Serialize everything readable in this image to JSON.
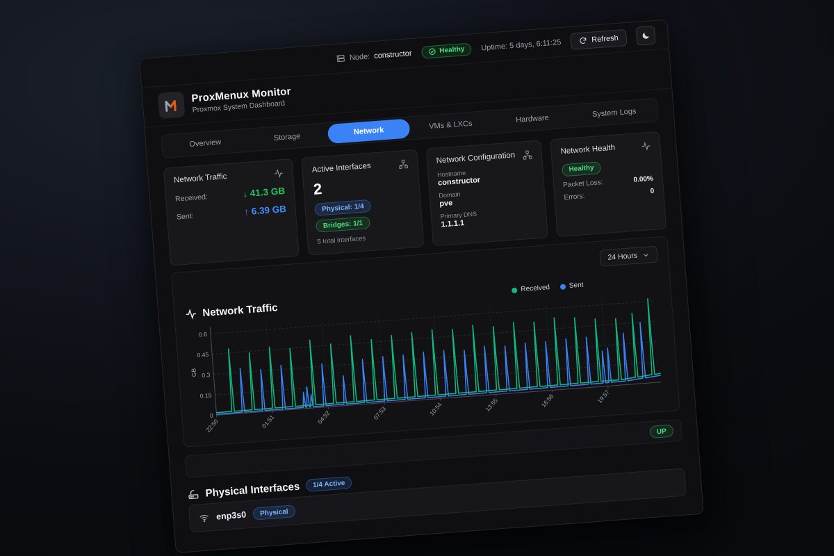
{
  "topbar": {
    "node_label": "Node:",
    "node_value": "constructor",
    "health_badge": "Healthy",
    "uptime": "Uptime: 5 days, 6:11:25",
    "refresh_label": "Refresh"
  },
  "brand": {
    "title": "ProxMenux Monitor",
    "subtitle": "Proxmox System Dashboard"
  },
  "tabs": [
    {
      "label": "Overview",
      "active": false
    },
    {
      "label": "Storage",
      "active": false
    },
    {
      "label": "Network",
      "active": true
    },
    {
      "label": "VMs & LXCs",
      "active": false
    },
    {
      "label": "Hardware",
      "active": false
    },
    {
      "label": "System Logs",
      "active": false
    }
  ],
  "cards": {
    "traffic": {
      "title": "Network Traffic",
      "received_label": "Received:",
      "received_value": "↓ 41.3 GB",
      "sent_label": "Sent:",
      "sent_value": "↑ 6.39 GB"
    },
    "interfaces": {
      "title": "Active Interfaces",
      "count": "2",
      "badges": [
        {
          "label": "Physical: 1/4",
          "style": "blue"
        },
        {
          "label": "Bridges: 1/1",
          "style": "green"
        }
      ],
      "footnote": "5 total interfaces"
    },
    "config": {
      "title": "Network Configuration",
      "fields": [
        {
          "label": "Hostname",
          "value": "constructor"
        },
        {
          "label": "Domain",
          "value": "pve"
        },
        {
          "label": "Primary DNS",
          "value": "1.1.1.1"
        }
      ]
    },
    "health": {
      "title": "Network Health",
      "status_badge": "Healthy",
      "rows": [
        {
          "label": "Packet Loss:",
          "value": "0.00%"
        },
        {
          "label": "Errors:",
          "value": "0"
        }
      ]
    }
  },
  "chart_card": {
    "title": "Network Traffic",
    "time_range": "24 Hours"
  },
  "chart_data": {
    "type": "line",
    "title": "Network Traffic",
    "ylabel": "GB",
    "ylim": [
      0,
      0.65
    ],
    "grid": true,
    "legend_position": "top",
    "y_ticks": [
      {
        "v": 0,
        "label": "0"
      },
      {
        "v": 0.15,
        "label": "0.15"
      },
      {
        "v": 0.3,
        "label": "0.3"
      },
      {
        "v": 0.45,
        "label": "0.45"
      },
      {
        "v": 0.6,
        "label": "0.6"
      }
    ],
    "x_ticks": [
      {
        "t": 0,
        "label": "22:50"
      },
      {
        "t": 3.02,
        "label": "01:51"
      },
      {
        "t": 6.03,
        "label": "04:52"
      },
      {
        "t": 9.05,
        "label": "07:53"
      },
      {
        "t": 12.07,
        "label": "10:54"
      },
      {
        "t": 15.08,
        "label": "13:55"
      },
      {
        "t": 18.1,
        "label": "16:56"
      },
      {
        "t": 21.12,
        "label": "19:57"
      }
    ],
    "legend": [
      {
        "name": "Received",
        "color": "#10b981"
      },
      {
        "name": "Sent",
        "color": "#3b82f6"
      }
    ],
    "series": [
      {
        "name": "Received",
        "color": "#10b981",
        "baseline": [
          [
            0,
            0.018
          ],
          [
            12,
            0.028
          ],
          [
            22,
            0.04
          ],
          [
            24,
            0.065
          ]
        ],
        "spikes": [
          [
            0.9,
            0.48
          ],
          [
            2.0,
            0.44
          ],
          [
            3.1,
            0.47
          ],
          [
            4.2,
            0.45
          ],
          [
            5.3,
            0.5
          ],
          [
            6.4,
            0.46
          ],
          [
            7.5,
            0.51
          ],
          [
            8.6,
            0.47
          ],
          [
            9.7,
            0.49
          ],
          [
            10.8,
            0.5
          ],
          [
            11.9,
            0.51
          ],
          [
            13.0,
            0.5
          ],
          [
            14.1,
            0.52
          ],
          [
            15.2,
            0.5
          ],
          [
            16.3,
            0.52
          ],
          [
            17.4,
            0.51
          ],
          [
            18.5,
            0.53
          ],
          [
            19.6,
            0.52
          ],
          [
            20.7,
            0.5
          ],
          [
            21.8,
            0.49
          ],
          [
            22.7,
            0.52
          ],
          [
            23.6,
            0.62
          ]
        ]
      },
      {
        "name": "Sent",
        "color": "#3b82f6",
        "baseline": [
          [
            0,
            0.006
          ],
          [
            12,
            0.014
          ],
          [
            22,
            0.026
          ],
          [
            24,
            0.05
          ]
        ],
        "spikes": [
          [
            1.45,
            0.33
          ],
          [
            2.55,
            0.31
          ],
          [
            3.65,
            0.33
          ],
          [
            4.75,
            0.12
          ],
          [
            4.95,
            0.16
          ],
          [
            5.15,
            0.1
          ],
          [
            5.85,
            0.32
          ],
          [
            6.95,
            0.22
          ],
          [
            8.05,
            0.33
          ],
          [
            9.15,
            0.34
          ],
          [
            10.25,
            0.34
          ],
          [
            11.35,
            0.35
          ],
          [
            12.45,
            0.35
          ],
          [
            13.55,
            0.34
          ],
          [
            14.65,
            0.36
          ],
          [
            15.75,
            0.35
          ],
          [
            16.85,
            0.36
          ],
          [
            17.95,
            0.36
          ],
          [
            19.05,
            0.37
          ],
          [
            20.15,
            0.37
          ],
          [
            20.95,
            0.26
          ],
          [
            21.25,
            0.28
          ],
          [
            22.15,
            0.38
          ],
          [
            23.1,
            0.45
          ]
        ]
      }
    ]
  },
  "status_row": {
    "badge": "UP"
  },
  "physical_section": {
    "title": "Physical Interfaces",
    "badge": "1/4 Active"
  },
  "interface_row": {
    "name": "enp3s0",
    "badge": "Physical"
  },
  "colors": {
    "accent_blue": "#3b82f6",
    "green": "#22c55e",
    "orange": "#ea580c"
  }
}
